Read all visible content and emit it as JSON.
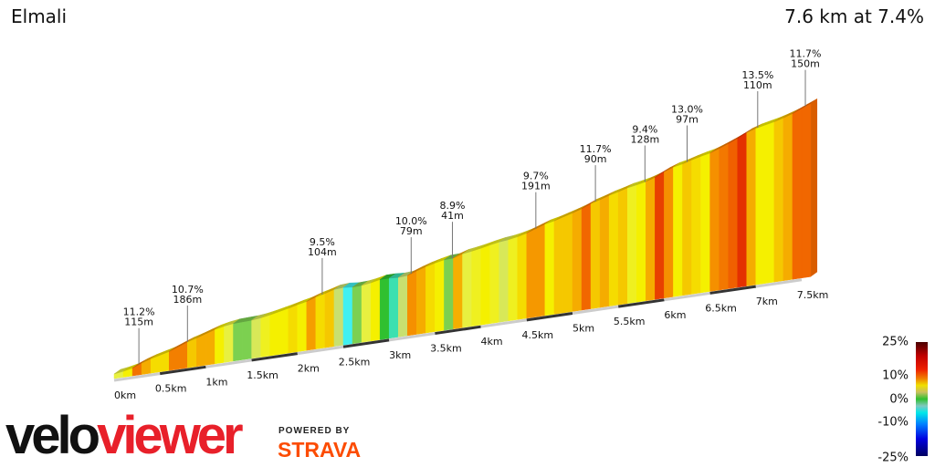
{
  "header": {
    "title": "Elmali",
    "summary": "7.6 km at 7.4%"
  },
  "chart_data": {
    "type": "area",
    "title": "Elmali",
    "distance_km": 7.6,
    "avg_grade_pct": 7.4,
    "segment_length_km": 0.1,
    "segment_grades_pct": [
      4,
      6,
      11.2,
      9,
      7,
      7,
      10.7,
      10.7,
      8,
      9,
      9,
      6,
      4,
      1,
      1,
      3,
      5,
      6,
      6,
      7,
      6,
      9.5,
      7,
      8,
      2,
      -3,
      1,
      4,
      6,
      0,
      -2,
      2,
      10,
      9,
      7,
      6,
      1,
      8.9,
      4,
      5,
      6,
      5,
      3,
      5,
      7,
      9.7,
      9.7,
      6,
      8,
      8,
      9,
      11.7,
      8,
      9,
      7,
      8,
      5,
      6,
      9,
      13,
      10,
      6,
      8,
      7,
      6,
      10,
      11,
      12,
      13.5,
      9,
      6,
      6,
      8,
      9,
      11.7,
      11.7
    ],
    "x_ticks": [
      "0km",
      "0.5km",
      "1km",
      "1.5km",
      "2km",
      "2.5km",
      "3km",
      "3.5km",
      "4km",
      "4.5km",
      "5km",
      "5.5km",
      "6km",
      "6.5km",
      "7km",
      "7.5km"
    ],
    "annotations": [
      {
        "km": 0.27,
        "grade": "11.2%",
        "length": "115m"
      },
      {
        "km": 0.8,
        "grade": "10.7%",
        "length": "186m"
      },
      {
        "km": 2.27,
        "grade": "9.5%",
        "length": "104m"
      },
      {
        "km": 3.24,
        "grade": "10.0%",
        "length": "79m"
      },
      {
        "km": 3.69,
        "grade": "8.9%",
        "length": "41m"
      },
      {
        "km": 4.6,
        "grade": "9.7%",
        "length": "191m"
      },
      {
        "km": 5.25,
        "grade": "11.7%",
        "length": "90m"
      },
      {
        "km": 5.79,
        "grade": "9.4%",
        "length": "128m"
      },
      {
        "km": 6.25,
        "grade": "13.0%",
        "length": "97m"
      },
      {
        "km": 7.02,
        "grade": "13.5%",
        "length": "110m"
      },
      {
        "km": 7.54,
        "grade": "11.7%",
        "length": "150m"
      }
    ],
    "legend": {
      "title": "",
      "labels": [
        "25%",
        "10%",
        "0%",
        "-10%",
        "-25%"
      ],
      "values": [
        25,
        10,
        0,
        -10,
        -25
      ]
    },
    "colors": {
      "green": "#30c030",
      "yellow": "#f5f000",
      "orange": "#f59000",
      "red": "#e02000",
      "cyan": "#00e8e8"
    }
  },
  "branding": {
    "logo_velo": "velo",
    "logo_viewer": "viewer",
    "powered_by": "POWERED BY",
    "strava": "STRAVA"
  }
}
